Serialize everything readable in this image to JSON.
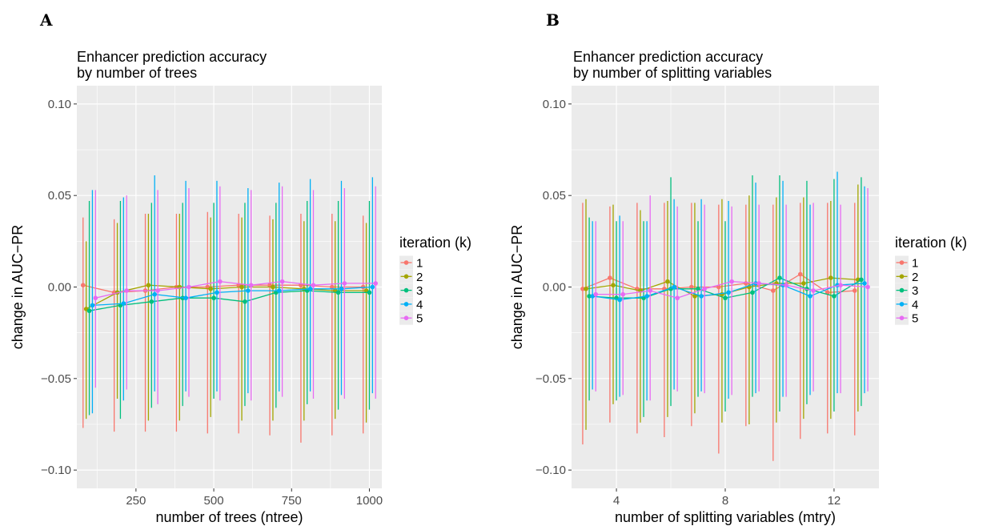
{
  "colors": {
    "panel_bg": "#EBEBEB",
    "grid": "#FFFFFF",
    "series": [
      "#F8766D",
      "#A3A500",
      "#00BF7D",
      "#00B0F6",
      "#E76BF3"
    ]
  },
  "chart_data": [
    {
      "panel": "A",
      "type": "line",
      "title_line1": "Enhancer prediction accuracy",
      "title_line2": " by number of trees",
      "xlabel": "number of trees (ntree)",
      "ylabel": "change in AUC−PR",
      "xlim": [
        60,
        1040
      ],
      "ylim": [
        -0.11,
        0.11
      ],
      "xticks": [
        250,
        500,
        750,
        1000
      ],
      "xtick_labels": [
        "250",
        "500",
        "750",
        "1000"
      ],
      "yticks": [
        -0.1,
        -0.05,
        0.0,
        0.05,
        0.1
      ],
      "ytick_labels": [
        "−0.10",
        "−0.05",
        "0.00",
        "0.05",
        "0.10"
      ],
      "x": [
        100,
        200,
        300,
        400,
        500,
        600,
        700,
        800,
        900,
        1000
      ],
      "dodge": 10,
      "grid": true,
      "legend": {
        "title": "iteration (k)",
        "labels": [
          "1",
          "2",
          "3",
          "4",
          "5"
        ],
        "position": "right"
      },
      "series": [
        {
          "name": "1",
          "values": [
            0.001,
            -0.003,
            -0.002,
            0.0,
            0.0,
            0.001,
            0.001,
            0.001,
            0.0,
            0.0
          ],
          "lower": [
            -0.077,
            -0.079,
            -0.079,
            -0.079,
            -0.08,
            -0.08,
            -0.081,
            -0.085,
            -0.081,
            -0.08
          ],
          "upper": [
            0.038,
            0.037,
            0.04,
            0.04,
            0.041,
            0.04,
            0.039,
            0.04,
            0.04,
            0.039
          ]
        },
        {
          "name": "2",
          "values": [
            -0.012,
            -0.003,
            0.001,
            0.0,
            -0.001,
            0.0,
            0.0,
            -0.001,
            -0.002,
            -0.002
          ],
          "lower": [
            -0.072,
            -0.061,
            -0.073,
            -0.073,
            -0.071,
            -0.073,
            -0.073,
            -0.073,
            -0.072,
            -0.074
          ],
          "upper": [
            0.025,
            0.035,
            0.04,
            0.04,
            0.038,
            0.038,
            0.037,
            0.036,
            0.036,
            0.035
          ]
        },
        {
          "name": "3",
          "values": [
            -0.013,
            -0.01,
            -0.008,
            -0.006,
            -0.006,
            -0.008,
            -0.003,
            -0.002,
            -0.003,
            -0.003
          ],
          "lower": [
            -0.07,
            -0.072,
            -0.066,
            -0.065,
            -0.061,
            -0.065,
            -0.066,
            -0.064,
            -0.067,
            -0.067
          ],
          "upper": [
            0.047,
            0.047,
            0.046,
            0.046,
            0.046,
            0.046,
            0.046,
            0.047,
            0.047,
            0.047
          ]
        },
        {
          "name": "4",
          "values": [
            -0.01,
            -0.009,
            -0.004,
            -0.006,
            -0.003,
            -0.002,
            -0.002,
            -0.001,
            -0.001,
            0.0
          ],
          "lower": [
            -0.069,
            -0.062,
            -0.057,
            -0.057,
            -0.057,
            -0.058,
            -0.057,
            -0.057,
            -0.059,
            -0.058
          ],
          "upper": [
            0.053,
            0.049,
            0.061,
            0.058,
            0.058,
            0.054,
            0.057,
            0.059,
            0.058,
            0.06
          ]
        },
        {
          "name": "5",
          "values": [
            -0.006,
            -0.002,
            -0.002,
            0.0,
            0.003,
            0.001,
            0.003,
            0.001,
            0.002,
            0.002
          ],
          "lower": [
            -0.055,
            -0.056,
            -0.064,
            -0.06,
            -0.062,
            -0.062,
            -0.06,
            -0.061,
            -0.061,
            -0.061
          ],
          "upper": [
            0.053,
            0.05,
            0.053,
            0.054,
            0.055,
            0.053,
            0.055,
            0.053,
            0.054,
            0.055
          ]
        }
      ]
    },
    {
      "panel": "B",
      "type": "line",
      "title_line1": "Enhancer prediction accuracy",
      "title_line2": " by number of splitting variables",
      "xlabel": "number of splitting variables (mtry)",
      "ylabel": "change in AUC−PR",
      "xlim": [
        2.35,
        13.65
      ],
      "ylim": [
        -0.11,
        0.11
      ],
      "xticks": [
        4,
        8,
        12
      ],
      "xtick_labels": [
        "4",
        "8",
        "12"
      ],
      "yticks": [
        -0.1,
        -0.05,
        0.0,
        0.05,
        0.1
      ],
      "ytick_labels": [
        "−0.10",
        "−0.05",
        "0.00",
        "0.05",
        "0.10"
      ],
      "x": [
        3,
        4,
        5,
        6,
        7,
        8,
        9,
        10,
        11,
        12,
        13
      ],
      "dodge": 0.12,
      "grid": true,
      "legend": {
        "title": "iteration (k)",
        "labels": [
          "1",
          "2",
          "3",
          "4",
          "5"
        ],
        "position": "right"
      },
      "series": [
        {
          "name": "1",
          "values": [
            -0.001,
            0.005,
            -0.001,
            -0.001,
            0.0,
            0.0,
            0.002,
            -0.002,
            0.007,
            -0.003,
            -0.002
          ],
          "lower": [
            -0.086,
            -0.074,
            -0.08,
            -0.082,
            -0.076,
            -0.091,
            -0.076,
            -0.095,
            -0.083,
            -0.08,
            -0.081
          ],
          "upper": [
            0.046,
            0.044,
            0.046,
            0.046,
            0.046,
            0.045,
            0.045,
            0.045,
            0.046,
            0.046,
            0.046
          ]
        },
        {
          "name": "2",
          "values": [
            -0.001,
            0.001,
            -0.002,
            0.003,
            -0.005,
            -0.004,
            0.0,
            0.002,
            0.002,
            0.005,
            0.004
          ],
          "lower": [
            -0.078,
            -0.064,
            -0.074,
            -0.071,
            -0.069,
            -0.074,
            -0.075,
            -0.074,
            -0.072,
            -0.072,
            -0.068
          ],
          "upper": [
            0.048,
            0.045,
            0.042,
            0.047,
            0.046,
            0.048,
            0.05,
            0.049,
            0.049,
            0.047,
            0.056
          ]
        },
        {
          "name": "3",
          "values": [
            -0.005,
            -0.006,
            -0.006,
            -0.001,
            -0.001,
            -0.006,
            -0.003,
            0.005,
            -0.001,
            -0.005,
            0.004
          ],
          "lower": [
            -0.062,
            -0.062,
            -0.071,
            -0.065,
            -0.06,
            -0.068,
            -0.06,
            -0.068,
            -0.064,
            -0.068,
            -0.065
          ],
          "upper": [
            0.038,
            0.036,
            0.036,
            0.06,
            0.036,
            0.036,
            0.061,
            0.061,
            0.058,
            0.059,
            0.06
          ]
        },
        {
          "name": "4",
          "values": [
            -0.005,
            -0.007,
            -0.005,
            0.0,
            -0.005,
            -0.003,
            0.002,
            0.001,
            -0.005,
            0.001,
            0.002
          ],
          "lower": [
            -0.056,
            -0.06,
            -0.062,
            -0.056,
            -0.057,
            -0.061,
            -0.058,
            -0.06,
            -0.059,
            -0.058,
            -0.058
          ],
          "upper": [
            0.036,
            0.039,
            0.036,
            0.048,
            0.048,
            0.047,
            0.057,
            0.058,
            0.045,
            0.063,
            0.055
          ]
        },
        {
          "name": "5",
          "values": [
            -0.004,
            -0.004,
            -0.002,
            -0.006,
            -0.001,
            0.003,
            0.002,
            0.001,
            -0.002,
            0.001,
            0.0
          ],
          "lower": [
            -0.057,
            -0.059,
            -0.062,
            -0.057,
            -0.058,
            -0.059,
            -0.057,
            -0.06,
            -0.057,
            -0.058,
            -0.057
          ],
          "upper": [
            0.036,
            0.036,
            0.05,
            0.044,
            0.045,
            0.044,
            0.045,
            0.045,
            0.046,
            0.045,
            0.054
          ]
        }
      ]
    }
  ]
}
